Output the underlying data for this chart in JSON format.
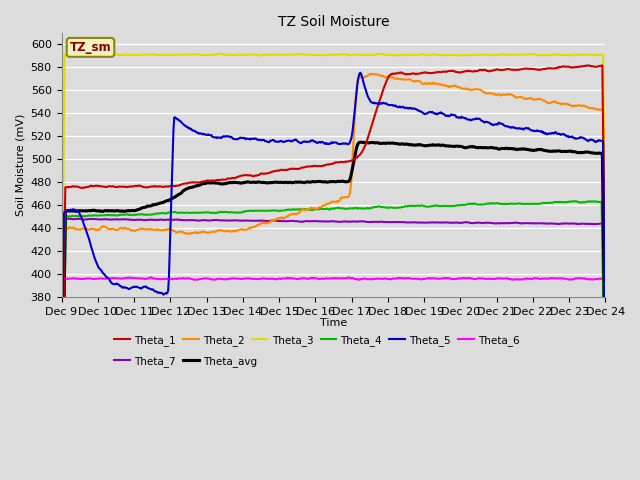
{
  "title": "TZ Soil Moisture",
  "ylabel": "Soil Moisture (mV)",
  "xlabel": "Time",
  "ylim": [
    380,
    610
  ],
  "yticks": [
    380,
    400,
    420,
    440,
    460,
    480,
    500,
    520,
    540,
    560,
    580,
    600
  ],
  "x_labels": [
    "Dec 9",
    "Dec 10",
    "Dec 11",
    "Dec 12",
    "Dec 13",
    "Dec 14",
    "Dec 15",
    "Dec 16",
    "Dec 17",
    "Dec 18",
    "Dec 19",
    "Dec 20",
    "Dec 21",
    "Dec 22",
    "Dec 23",
    "Dec 24"
  ],
  "n_days": 15,
  "background_color": "#dcdcdc",
  "plot_bg_color": "#dcdcdc",
  "legend_box_color": "#f0f0c0",
  "legend_box_text": "TZ_sm",
  "colors": {
    "Theta_1": "#cc0000",
    "Theta_2": "#ff8800",
    "Theta_3": "#dddd00",
    "Theta_4": "#00bb00",
    "Theta_5": "#0000cc",
    "Theta_6": "#ff00ff",
    "Theta_7": "#8800bb",
    "Theta_avg": "#000000"
  },
  "lws": {
    "Theta_1": 1.5,
    "Theta_2": 1.5,
    "Theta_3": 1.5,
    "Theta_4": 1.5,
    "Theta_5": 1.5,
    "Theta_6": 1.5,
    "Theta_7": 1.5,
    "Theta_avg": 2.2
  }
}
